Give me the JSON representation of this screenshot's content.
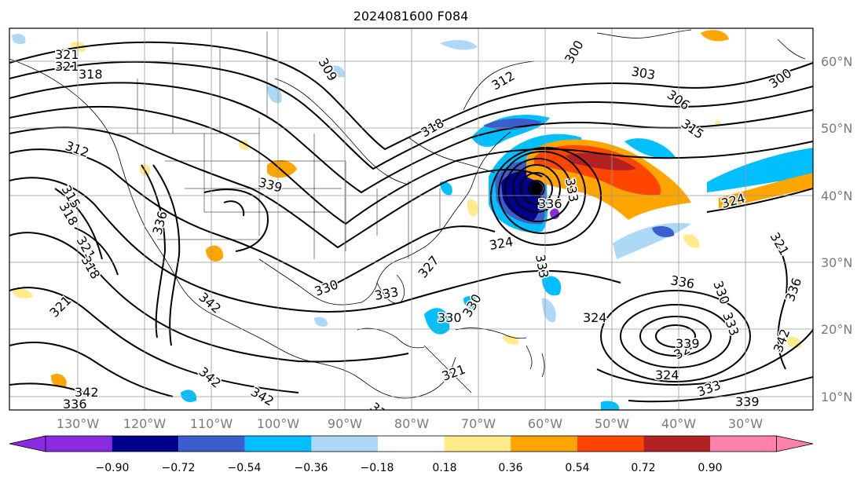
{
  "title": "2024081600 F084",
  "lat_labels": [
    "60°N",
    "50°N",
    "40°N",
    "30°N",
    "20°N",
    "10°N"
  ],
  "lon_labels": [
    "130°W",
    "120°W",
    "110°W",
    "100°W",
    "90°W",
    "80°W",
    "70°W",
    "60°W",
    "50°W",
    "40°W",
    "30°W"
  ],
  "colorbar": {
    "tick_labels": [
      "−0.90",
      "−0.72",
      "−0.54",
      "−0.36",
      "−0.18",
      "0.18",
      "0.36",
      "0.54",
      "0.72",
      "0.90"
    ],
    "colors": [
      "#8a2be2",
      "#00008b",
      "#3a5fcd",
      "#00bfff",
      "#add8f6",
      "#ffffff",
      "#ffeb8a",
      "#ffa500",
      "#ff4500",
      "#b22222",
      "#ff82ab"
    ]
  },
  "contour_labels": [
    {
      "id": "c321a",
      "text": "321"
    },
    {
      "id": "c321b",
      "text": "321"
    },
    {
      "id": "c318a",
      "text": "318"
    },
    {
      "id": "c312",
      "text": "312"
    },
    {
      "id": "c315a",
      "text": "315"
    },
    {
      "id": "c318b",
      "text": "318"
    },
    {
      "id": "c321c",
      "text": "321"
    },
    {
      "id": "c318c",
      "text": "318"
    },
    {
      "id": "c336a",
      "text": "336"
    },
    {
      "id": "c321d",
      "text": "321"
    },
    {
      "id": "c342a",
      "text": "342"
    },
    {
      "id": "c342b",
      "text": "342"
    },
    {
      "id": "c336b",
      "text": "336"
    },
    {
      "id": "c342c",
      "text": "342"
    },
    {
      "id": "c342d",
      "text": "342"
    },
    {
      "id": "c339a",
      "text": "339"
    },
    {
      "id": "c339b",
      "text": "339"
    },
    {
      "id": "c330a",
      "text": "330"
    },
    {
      "id": "c333a",
      "text": "333"
    },
    {
      "id": "c330b",
      "text": "330"
    },
    {
      "id": "c330c",
      "text": "330"
    },
    {
      "id": "c321e",
      "text": "321"
    },
    {
      "id": "c327",
      "text": "327"
    },
    {
      "id": "c309",
      "text": "309"
    },
    {
      "id": "c300a",
      "text": "300"
    },
    {
      "id": "c303",
      "text": "303"
    },
    {
      "id": "c306",
      "text": "306"
    },
    {
      "id": "c315b",
      "text": "315"
    },
    {
      "id": "c300b",
      "text": "300"
    },
    {
      "id": "c312b",
      "text": "312"
    },
    {
      "id": "c324a",
      "text": "324"
    },
    {
      "id": "c333b",
      "text": "333"
    },
    {
      "id": "c336c",
      "text": "336"
    },
    {
      "id": "c324b",
      "text": "324"
    },
    {
      "id": "c333c",
      "text": "333"
    },
    {
      "id": "c324c",
      "text": "324"
    },
    {
      "id": "c324d",
      "text": "324"
    },
    {
      "id": "c321f",
      "text": "321"
    },
    {
      "id": "c336d",
      "text": "336"
    },
    {
      "id": "c330d",
      "text": "330"
    },
    {
      "id": "c333d",
      "text": "333"
    },
    {
      "id": "c339c",
      "text": "339"
    },
    {
      "id": "c324e",
      "text": "324"
    },
    {
      "id": "c333e",
      "text": "333"
    },
    {
      "id": "c339d",
      "text": "339"
    },
    {
      "id": "c342e",
      "text": "342"
    },
    {
      "id": "c336e",
      "text": "336"
    },
    {
      "id": "c318d",
      "text": "318"
    }
  ]
}
